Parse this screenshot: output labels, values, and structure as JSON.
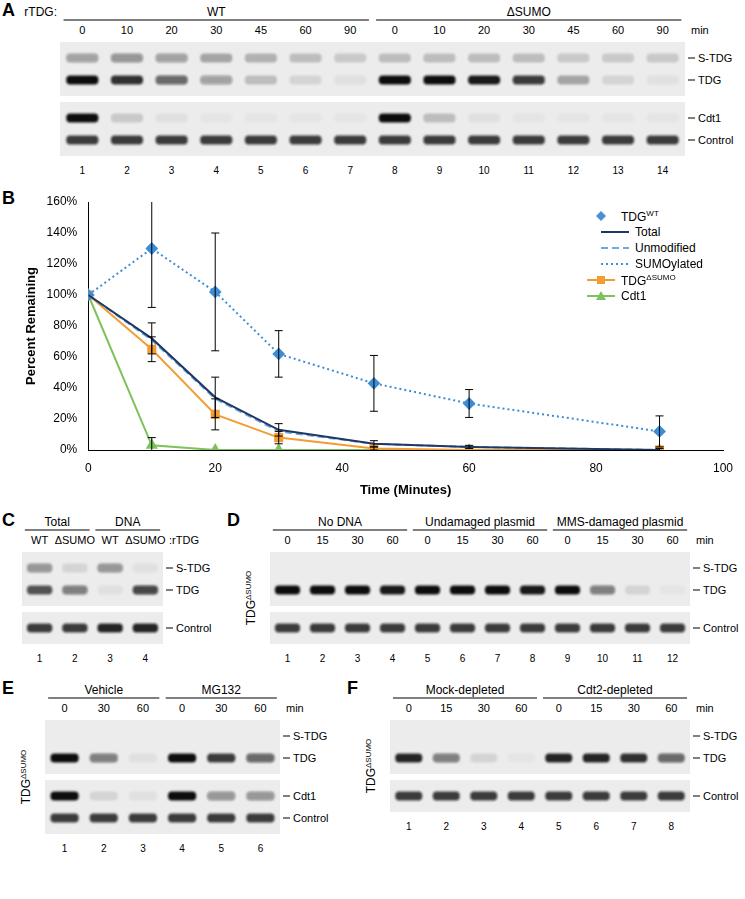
{
  "blot_panels": [
    {
      "letter": "A",
      "header_label": "rTDG:",
      "lane_suffix": "min",
      "groups": [
        {
          "label": "WT",
          "lanes": [
            0,
            10,
            20,
            30,
            45,
            60,
            90
          ]
        },
        {
          "label": "ΔSUMO",
          "lanes": [
            0,
            10,
            20,
            30,
            45,
            60,
            90
          ]
        }
      ],
      "blots": [
        {
          "bands": [
            {
              "label": "S-TDG",
              "intensity": [
                0.35,
                0.4,
                0.35,
                0.3,
                0.25,
                0.2,
                0.15,
                0.2,
                0.2,
                0.2,
                0.2,
                0.15,
                0.15,
                0.15
              ]
            },
            {
              "label": "TDG",
              "intensity": [
                1,
                0.85,
                0.6,
                0.35,
                0.2,
                0.1,
                0.05,
                1,
                1,
                0.95,
                0.8,
                0.3,
                0.1,
                0.05
              ]
            }
          ]
        },
        {
          "bands": [
            {
              "label": "Cdt1",
              "intensity": [
                1,
                0.15,
                0.05,
                0.03,
                0.03,
                0.03,
                0.03,
                1,
                0.2,
                0.05,
                0.03,
                0.03,
                0.03,
                0.03
              ]
            },
            {
              "label": "Control",
              "intensity": [
                0.8,
                0.8,
                0.8,
                0.8,
                0.8,
                0.8,
                0.8,
                0.8,
                0.8,
                0.8,
                0.8,
                0.8,
                0.8,
                0.8
              ]
            }
          ]
        }
      ],
      "lane_numbers": [
        1,
        2,
        3,
        4,
        5,
        6,
        7,
        8,
        9,
        10,
        11,
        12,
        13,
        14
      ]
    },
    {
      "letter": "C",
      "lane_suffix": ":rTDG",
      "groups": [
        {
          "label": "Total",
          "lanes": [
            "WT",
            "ΔSUMO"
          ]
        },
        {
          "label": "DNA",
          "lanes": [
            "WT",
            "ΔSUMO"
          ]
        }
      ],
      "blots": [
        {
          "bands": [
            {
              "label": "S-TDG",
              "intensity": [
                0.4,
                0.1,
                0.4,
                0.05
              ]
            },
            {
              "label": "TDG",
              "intensity": [
                0.7,
                0.5,
                0.05,
                0.75
              ]
            }
          ]
        },
        {
          "bands": [
            {
              "label": "Control",
              "intensity": [
                0.8,
                0.8,
                0.9,
                0.9
              ]
            }
          ]
        }
      ],
      "lane_numbers": [
        1,
        2,
        3,
        4
      ]
    },
    {
      "letter": "D",
      "side_label": {
        "base": "TDG",
        "sup": "ΔSUMO"
      },
      "lane_suffix": "min",
      "groups": [
        {
          "label": "No DNA",
          "lanes": [
            0,
            15,
            30,
            60
          ]
        },
        {
          "label": "Undamaged plasmid",
          "lanes": [
            0,
            15,
            30,
            60
          ]
        },
        {
          "label": "MMS-damaged plasmid",
          "lanes": [
            0,
            15,
            30,
            60
          ]
        }
      ],
      "blots": [
        {
          "bands": [
            {
              "label": "S-TDG",
              "intensity": [
                0,
                0,
                0,
                0,
                0,
                0,
                0,
                0,
                0,
                0,
                0,
                0
              ]
            },
            {
              "label": "TDG",
              "intensity": [
                1,
                1,
                1,
                0.95,
                1,
                1,
                1,
                0.95,
                1,
                0.5,
                0.1,
                0.03
              ]
            }
          ]
        },
        {
          "bands": [
            {
              "label": "Control",
              "intensity": [
                0.8,
                0.8,
                0.8,
                0.8,
                0.8,
                0.8,
                0.8,
                0.8,
                0.8,
                0.8,
                0.8,
                0.8
              ]
            }
          ]
        }
      ],
      "lane_numbers": [
        1,
        2,
        3,
        4,
        5,
        6,
        7,
        8,
        9,
        10,
        11,
        12
      ]
    },
    {
      "letter": "E",
      "side_label": {
        "base": "TDG",
        "sup": "ΔSUMO"
      },
      "lane_suffix": "min",
      "groups": [
        {
          "label": "Vehicle",
          "lanes": [
            0,
            30,
            60
          ]
        },
        {
          "label": "MG132",
          "lanes": [
            0,
            30,
            60
          ]
        }
      ],
      "blots": [
        {
          "bands": [
            {
              "label": "S-TDG",
              "intensity": [
                0,
                0,
                0,
                0,
                0,
                0
              ]
            },
            {
              "label": "TDG",
              "intensity": [
                1,
                0.5,
                0.05,
                1,
                0.8,
                0.6
              ]
            }
          ]
        },
        {
          "bands": [
            {
              "label": "Cdt1",
              "intensity": [
                1,
                0.1,
                0.05,
                1,
                0.4,
                0.4
              ]
            },
            {
              "label": "Control",
              "intensity": [
                0.8,
                0.8,
                0.8,
                0.8,
                0.8,
                0.8
              ]
            }
          ]
        }
      ],
      "lane_numbers": [
        1,
        2,
        3,
        4,
        5,
        6
      ]
    },
    {
      "letter": "F",
      "side_label": {
        "base": "TDG",
        "sup": "ΔSUMO"
      },
      "lane_suffix": "min",
      "groups": [
        {
          "label": "Mock-depleted",
          "lanes": [
            0,
            15,
            30,
            60
          ]
        },
        {
          "label": "Cdt2-depleted",
          "lanes": [
            0,
            15,
            30,
            60
          ]
        }
      ],
      "blots": [
        {
          "bands": [
            {
              "label": "S-TDG",
              "intensity": [
                0,
                0,
                0,
                0,
                0,
                0,
                0,
                0
              ]
            },
            {
              "label": "TDG",
              "intensity": [
                0.9,
                0.5,
                0.1,
                0.03,
                0.9,
                0.9,
                0.85,
                0.6
              ]
            }
          ]
        },
        {
          "bands": [
            {
              "label": "Control",
              "intensity": [
                0.8,
                0.8,
                0.8,
                0.8,
                0.8,
                0.8,
                0.8,
                0.8
              ]
            }
          ]
        }
      ],
      "lane_numbers": [
        1,
        2,
        3,
        4,
        5,
        6,
        7,
        8
      ]
    }
  ],
  "chart_panel_letter": "B",
  "chart_data": {
    "type": "line",
    "x_label": "Time (Minutes)",
    "y_label": "Percent Remaining",
    "x": [
      0,
      10,
      20,
      30,
      45,
      60,
      90
    ],
    "xlim": [
      0,
      100
    ],
    "xticks": [
      0,
      20,
      40,
      60,
      80,
      100
    ],
    "ylim": [
      0,
      160
    ],
    "yticks": [
      {
        "value": 0,
        "label": "0%"
      },
      {
        "value": 20,
        "label": "20%"
      },
      {
        "value": 40,
        "label": "40%"
      },
      {
        "value": 60,
        "label": "60%"
      },
      {
        "value": 80,
        "label": "80%"
      },
      {
        "value": 100,
        "label": "100%"
      },
      {
        "value": 120,
        "label": "120%"
      },
      {
        "value": 140,
        "label": "140%"
      },
      {
        "value": 160,
        "label": "160%"
      }
    ],
    "grid": false,
    "legend": "upper right",
    "series": [
      {
        "name": {
          "base": "TDG",
          "sup": "WT"
        },
        "color": "#4a90d9",
        "marker": "diamond",
        "series": [
          {
            "name": "Total",
            "color": "#1f3864",
            "line_style": "solid",
            "marker": "none",
            "values": [
              100,
              72,
              34,
              13,
              4,
              2,
              0
            ],
            "errors": [
              null,
              10,
              13,
              4,
              2,
              1,
              1
            ]
          },
          {
            "name": "Unmodified",
            "color": "#6fa8dc",
            "line_style": "dashed",
            "marker": "none",
            "values": [
              100,
              71,
              33,
              12,
              4,
              2,
              0
            ],
            "errors": [
              null,
              null,
              null,
              null,
              null,
              null,
              null
            ]
          },
          {
            "name": "SUMOylated",
            "color": "#3c8dd6",
            "line_style": "dotted",
            "marker": "diamond",
            "values": [
              100,
              130,
              102,
              62,
              43,
              30,
              12
            ],
            "errors": [
              null,
              38,
              38,
              15,
              18,
              9,
              10
            ]
          }
        ]
      },
      {
        "name": {
          "base": "TDG",
          "sup": "ΔSUMO"
        },
        "color": "#f39c33",
        "line_style": "solid",
        "marker": "square",
        "values": [
          100,
          65,
          23,
          8,
          1,
          0,
          0
        ],
        "errors": [
          null,
          8,
          10,
          4,
          1,
          null,
          null
        ]
      },
      {
        "name": "Cdt1",
        "color": "#7dc35b",
        "line_style": "solid",
        "marker": "triangle",
        "values": [
          100,
          3,
          0,
          0,
          0,
          0,
          0
        ],
        "errors": [
          null,
          5,
          null,
          null,
          null,
          null,
          null
        ]
      }
    ]
  }
}
